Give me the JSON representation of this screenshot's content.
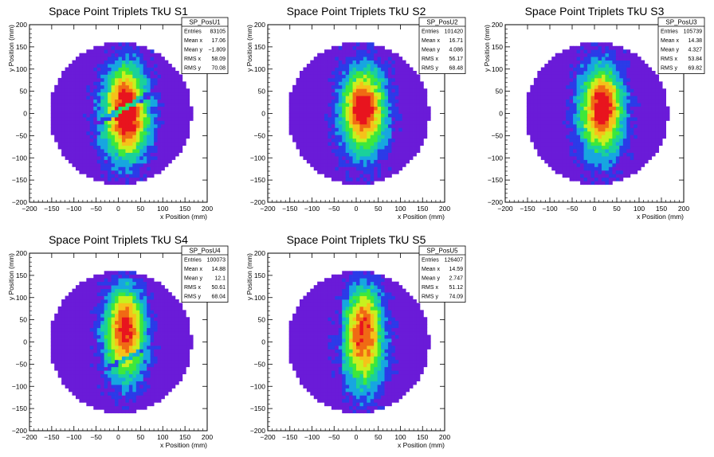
{
  "chart_data": [
    {
      "type": "heatmap",
      "title": "Space Point Triplets TkU S1",
      "xlabel": "x Position (mm)",
      "ylabel": "y Position (mm)",
      "xlim": [
        -200,
        200
      ],
      "ylim": [
        -200,
        200
      ],
      "xticks": [
        "−200",
        "−150",
        "−100",
        "−50",
        "0",
        "50",
        "100",
        "150",
        "200"
      ],
      "yticks": [
        "−200",
        "−150",
        "−100",
        "−50",
        "0",
        "50",
        "100",
        "150",
        "200"
      ],
      "colorscale": [
        "#6a1bd8",
        "#2b3be8",
        "#17a6e0",
        "#1ad19a",
        "#3ee83a",
        "#c8f01e",
        "#f5c21a",
        "#f06a14",
        "#e8141e"
      ],
      "stats": {
        "name": "SP_PosU1",
        "rows": [
          {
            "label": "Entries",
            "value": "83105"
          },
          {
            "label": "Mean x",
            "value": "17.06"
          },
          {
            "label": "Mean y",
            "value": "−1.809"
          },
          {
            "label": "RMS x",
            "value": "58.09"
          },
          {
            "label": "RMS y",
            "value": "70.08"
          }
        ]
      },
      "model": {
        "center_x": 17,
        "center_y": -2,
        "sigma_x": 58,
        "sigma_y": 70,
        "radius": 160,
        "gap": "diagonal",
        "hot_spots": [
          [
            15,
            60
          ],
          [
            25,
            -30
          ]
        ]
      }
    },
    {
      "type": "heatmap",
      "title": "Space Point Triplets TkU S2",
      "xlabel": "x Position (mm)",
      "ylabel": "y Position (mm)",
      "xlim": [
        -200,
        200
      ],
      "ylim": [
        -200,
        200
      ],
      "xticks": [
        "−200",
        "−150",
        "−100",
        "−50",
        "0",
        "50",
        "100",
        "150",
        "200"
      ],
      "yticks": [
        "−200",
        "−150",
        "−100",
        "−50",
        "0",
        "50",
        "100",
        "150",
        "200"
      ],
      "colorscale": [
        "#6a1bd8",
        "#2b3be8",
        "#17a6e0",
        "#1ad19a",
        "#3ee83a",
        "#c8f01e",
        "#f5c21a",
        "#f06a14",
        "#e8141e"
      ],
      "stats": {
        "name": "SP_PosU2",
        "rows": [
          {
            "label": "Entries",
            "value": "101420"
          },
          {
            "label": "Mean x",
            "value": "16.71"
          },
          {
            "label": "Mean y",
            "value": "4.086"
          },
          {
            "label": "RMS x",
            "value": "56.17"
          },
          {
            "label": "RMS y",
            "value": "68.48"
          }
        ]
      },
      "model": {
        "center_x": 17,
        "center_y": 4,
        "sigma_x": 56,
        "sigma_y": 68,
        "radius": 160,
        "gap": "none",
        "hot_spots": [
          [
            15,
            20
          ]
        ]
      }
    },
    {
      "type": "heatmap",
      "title": "Space Point Triplets TkU S3",
      "xlabel": "x Position (mm)",
      "ylabel": "y Position (mm)",
      "xlim": [
        -200,
        200
      ],
      "ylim": [
        -200,
        200
      ],
      "xticks": [
        "−200",
        "−150",
        "−100",
        "−50",
        "0",
        "50",
        "100",
        "150",
        "200"
      ],
      "yticks": [
        "−200",
        "−150",
        "−100",
        "−50",
        "0",
        "50",
        "100",
        "150",
        "200"
      ],
      "colorscale": [
        "#6a1bd8",
        "#2b3be8",
        "#17a6e0",
        "#1ad19a",
        "#3ee83a",
        "#c8f01e",
        "#f5c21a",
        "#f06a14",
        "#e8141e"
      ],
      "stats": {
        "name": "SP_PosU3",
        "rows": [
          {
            "label": "Entries",
            "value": "105739"
          },
          {
            "label": "Mean x",
            "value": "14.38"
          },
          {
            "label": "Mean y",
            "value": "4.327"
          },
          {
            "label": "RMS x",
            "value": "53.84"
          },
          {
            "label": "RMS y",
            "value": "69.82"
          }
        ]
      },
      "model": {
        "center_x": 14,
        "center_y": 4,
        "sigma_x": 54,
        "sigma_y": 70,
        "radius": 160,
        "gap": "none",
        "hot_spots": [
          [
            25,
            30
          ]
        ]
      }
    },
    {
      "type": "heatmap",
      "title": "Space Point Triplets TkU S4",
      "xlabel": "x Position (mm)",
      "ylabel": "y Position (mm)",
      "xlim": [
        -200,
        200
      ],
      "ylim": [
        -200,
        200
      ],
      "xticks": [
        "−200",
        "−150",
        "−100",
        "−50",
        "0",
        "50",
        "100",
        "150",
        "200"
      ],
      "yticks": [
        "−200",
        "−150",
        "−100",
        "−50",
        "0",
        "50",
        "100",
        "150",
        "200"
      ],
      "colorscale": [
        "#6a1bd8",
        "#2b3be8",
        "#17a6e0",
        "#1ad19a",
        "#3ee83a",
        "#c8f01e",
        "#f5c21a",
        "#f06a14",
        "#e8141e"
      ],
      "stats": {
        "name": "SP_PosU4",
        "rows": [
          {
            "label": "Entries",
            "value": "100073"
          },
          {
            "label": "Mean x",
            "value": "14.88"
          },
          {
            "label": "Mean y",
            "value": "12.1"
          },
          {
            "label": "RMS x",
            "value": "50.61"
          },
          {
            "label": "RMS y",
            "value": "68.04"
          }
        ]
      },
      "model": {
        "center_x": 15,
        "center_y": 12,
        "sigma_x": 51,
        "sigma_y": 68,
        "radius": 160,
        "gap": "diagonal-low",
        "hot_spots": [
          [
            15,
            70
          ]
        ]
      }
    },
    {
      "type": "heatmap",
      "title": "Space Point Triplets TkU S5",
      "xlabel": "x Position (mm)",
      "ylabel": "y Position (mm)",
      "xlim": [
        -200,
        200
      ],
      "ylim": [
        -200,
        200
      ],
      "xticks": [
        "−200",
        "−150",
        "−100",
        "−50",
        "0",
        "50",
        "100",
        "150",
        "200"
      ],
      "yticks": [
        "−200",
        "−150",
        "−100",
        "−50",
        "0",
        "50",
        "100",
        "150",
        "200"
      ],
      "colorscale": [
        "#6a1bd8",
        "#2b3be8",
        "#17a6e0",
        "#1ad19a",
        "#3ee83a",
        "#c8f01e",
        "#f5c21a",
        "#f06a14",
        "#e8141e"
      ],
      "stats": {
        "name": "SP_PosU5",
        "rows": [
          {
            "label": "Entries",
            "value": "126407"
          },
          {
            "label": "Mean x",
            "value": "14.59"
          },
          {
            "label": "Mean y",
            "value": "2.747"
          },
          {
            "label": "RMS x",
            "value": "51.12"
          },
          {
            "label": "RMS y",
            "value": "74.09"
          }
        ]
      },
      "model": {
        "center_x": 15,
        "center_y": 3,
        "sigma_x": 51,
        "sigma_y": 74,
        "radius": 160,
        "gap": "edge",
        "hot_spots": [
          [
            20,
            75
          ]
        ]
      }
    }
  ]
}
